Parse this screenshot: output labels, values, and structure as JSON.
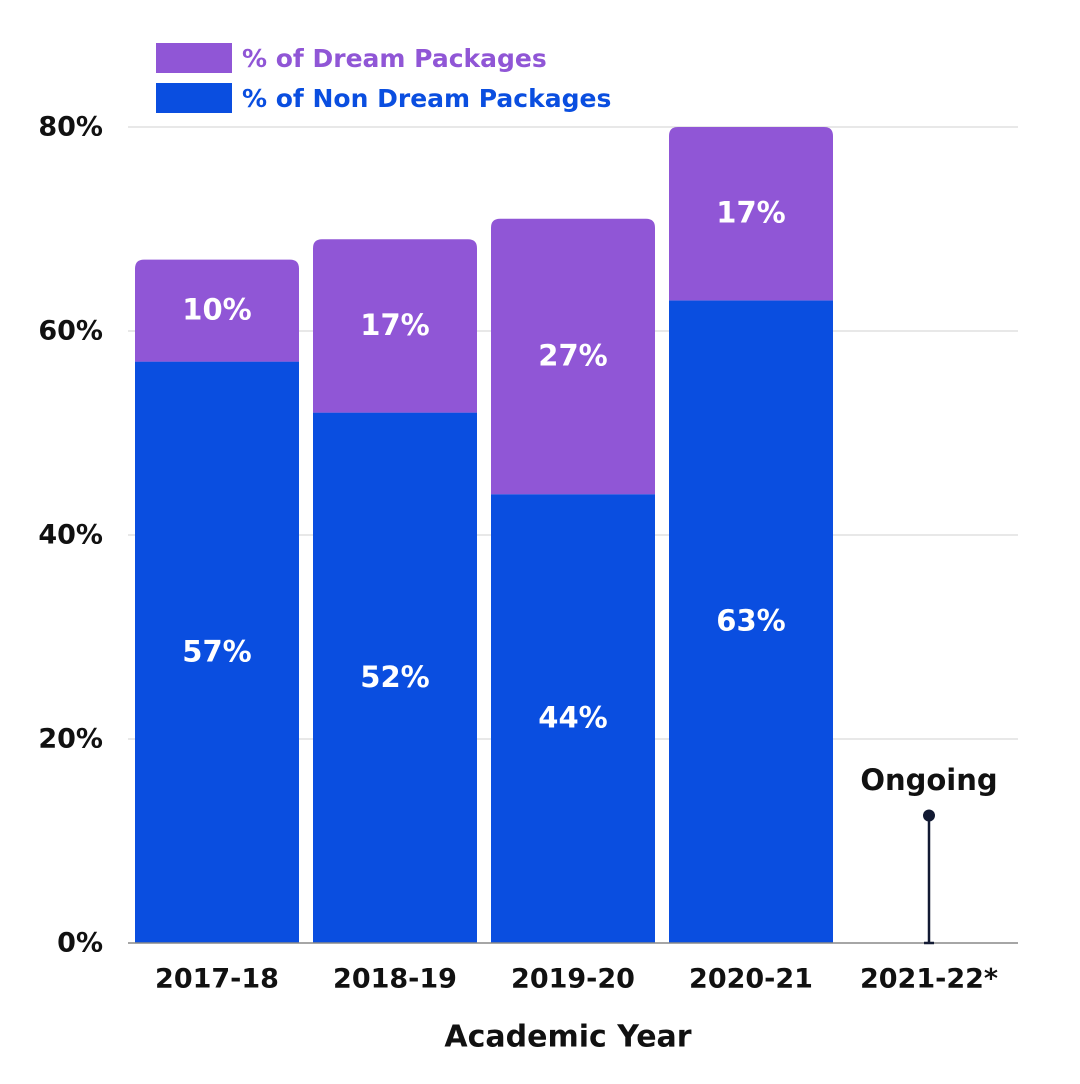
{
  "colors": {
    "dream": "#9056D6",
    "non_dream": "#0A4EE0",
    "grid": "#D0D0D0",
    "text": "#111111",
    "bar_label": "#FFFFFF",
    "marker": "#121A33"
  },
  "chart_data": {
    "type": "bar",
    "stacked": true,
    "categories": [
      "2017-18",
      "2018-19",
      "2019-20",
      "2020-21",
      "2021-22*"
    ],
    "series": [
      {
        "name": "% of Non Dream Packages",
        "values": [
          57,
          52,
          44,
          63,
          null
        ]
      },
      {
        "name": "% of Dream Packages",
        "values": [
          10,
          17,
          27,
          17,
          null
        ]
      }
    ],
    "data_labels": {
      "non_dream": [
        "57%",
        "52%",
        "44%",
        "63%",
        ""
      ],
      "dream": [
        "10%",
        "17%",
        "27%",
        "17%",
        ""
      ]
    },
    "ylim": [
      0,
      80
    ],
    "yticks": [
      0,
      20,
      40,
      60,
      80
    ],
    "ytick_labels": [
      "0%",
      "20%",
      "40%",
      "60%",
      "80%"
    ],
    "xlabel": "Academic Year",
    "ylabel": "",
    "title": "",
    "grid": true,
    "legend_position": "top-left",
    "annotation": {
      "category": "2021-22*",
      "text": "Ongoing",
      "value": 12.5
    }
  }
}
